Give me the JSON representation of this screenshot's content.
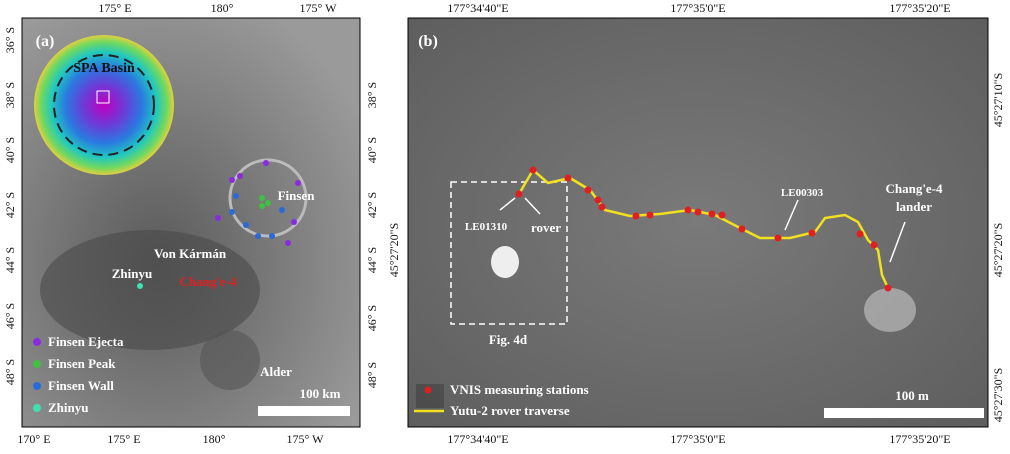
{
  "panel_a": {
    "label": "(a)",
    "top_ticks": [
      "175° E",
      "180°",
      "175° W"
    ],
    "left_ticks": [
      "36° S",
      "38° S",
      "40° S",
      "42° S",
      "44° S",
      "46° S",
      "48° S"
    ],
    "right_ticks": [
      "38° S",
      "40° S",
      "42° S",
      "44° S",
      "46° S",
      "48° S"
    ],
    "bottom_ticks": [
      "170° E",
      "175° E",
      "180°",
      "175° W"
    ],
    "inset_label": "SPA Basin",
    "places": [
      "Finsen",
      "Von Kármán",
      "Zhinyu",
      "Chang'e-4",
      "Alder"
    ],
    "scale_bar": "100 km",
    "legend": [
      "Finsen Ejecta",
      "Finsen Peak",
      "Finsen Wall",
      "Zhinyu"
    ]
  },
  "panel_b": {
    "label": "(b)",
    "top_ticks": [
      "177°34'40\"E",
      "177°35'0\"E",
      "177°35'20\"E"
    ],
    "bottom_ticks": [
      "177°34'40\"E",
      "177°35'0\"E",
      "177°35'20\"E"
    ],
    "left_ticks": [
      "45°27'20\"S"
    ],
    "right_ticks": [
      "45°27'10\"S",
      "45°27'20\"S",
      "45°27'30\"S"
    ],
    "annotations": [
      "LE01310",
      "rover",
      "LE00303",
      "Chang'e-4",
      "lander",
      "Fig. 4d"
    ],
    "scale_bar": "100 m",
    "legend": [
      "VNIS measuring stations",
      "Yutu-2 rover traverse"
    ]
  }
}
